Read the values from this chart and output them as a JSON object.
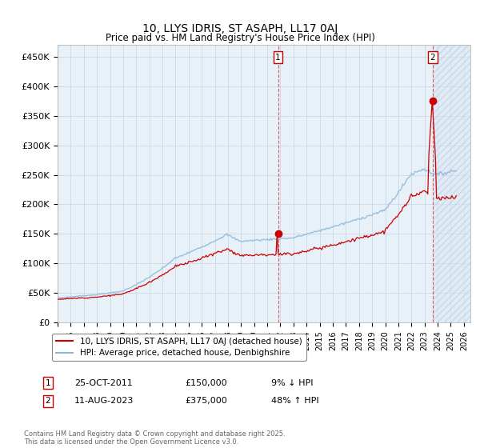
{
  "title": "10, LLYS IDRIS, ST ASAPH, LL17 0AJ",
  "subtitle": "Price paid vs. HM Land Registry's House Price Index (HPI)",
  "ylabel_ticks": [
    "£0",
    "£50K",
    "£100K",
    "£150K",
    "£200K",
    "£250K",
    "£300K",
    "£350K",
    "£400K",
    "£450K"
  ],
  "ytick_vals": [
    0,
    50000,
    100000,
    150000,
    200000,
    250000,
    300000,
    350000,
    400000,
    450000
  ],
  "ylim": [
    0,
    470000
  ],
  "xlim_start": 1995.0,
  "xlim_end": 2026.5,
  "sale1_x": 2011.82,
  "sale1_y": 150000,
  "sale2_x": 2023.62,
  "sale2_y": 375000,
  "bg_color": "#ffffff",
  "plot_bg_color": "#e8f0f8",
  "hpi_color": "#89b8d8",
  "price_color": "#cc0000",
  "legend1_label": "10, LLYS IDRIS, ST ASAPH, LL17 0AJ (detached house)",
  "legend2_label": "HPI: Average price, detached house, Denbighshire",
  "annotation1_date": "25-OCT-2011",
  "annotation1_price": "£150,000",
  "annotation1_hpi": "9% ↓ HPI",
  "annotation2_date": "11-AUG-2023",
  "annotation2_price": "£375,000",
  "annotation2_hpi": "48% ↑ HPI",
  "footer": "Contains HM Land Registry data © Crown copyright and database right 2025.\nThis data is licensed under the Open Government Licence v3.0.",
  "xtick_years": [
    1995,
    1996,
    1997,
    1998,
    1999,
    2000,
    2001,
    2002,
    2003,
    2004,
    2005,
    2006,
    2007,
    2008,
    2009,
    2010,
    2011,
    2012,
    2013,
    2014,
    2015,
    2016,
    2017,
    2018,
    2019,
    2020,
    2021,
    2022,
    2023,
    2024,
    2025,
    2026
  ],
  "hatch_start_x": 2023.62,
  "grid_color": "#c8d8e8"
}
